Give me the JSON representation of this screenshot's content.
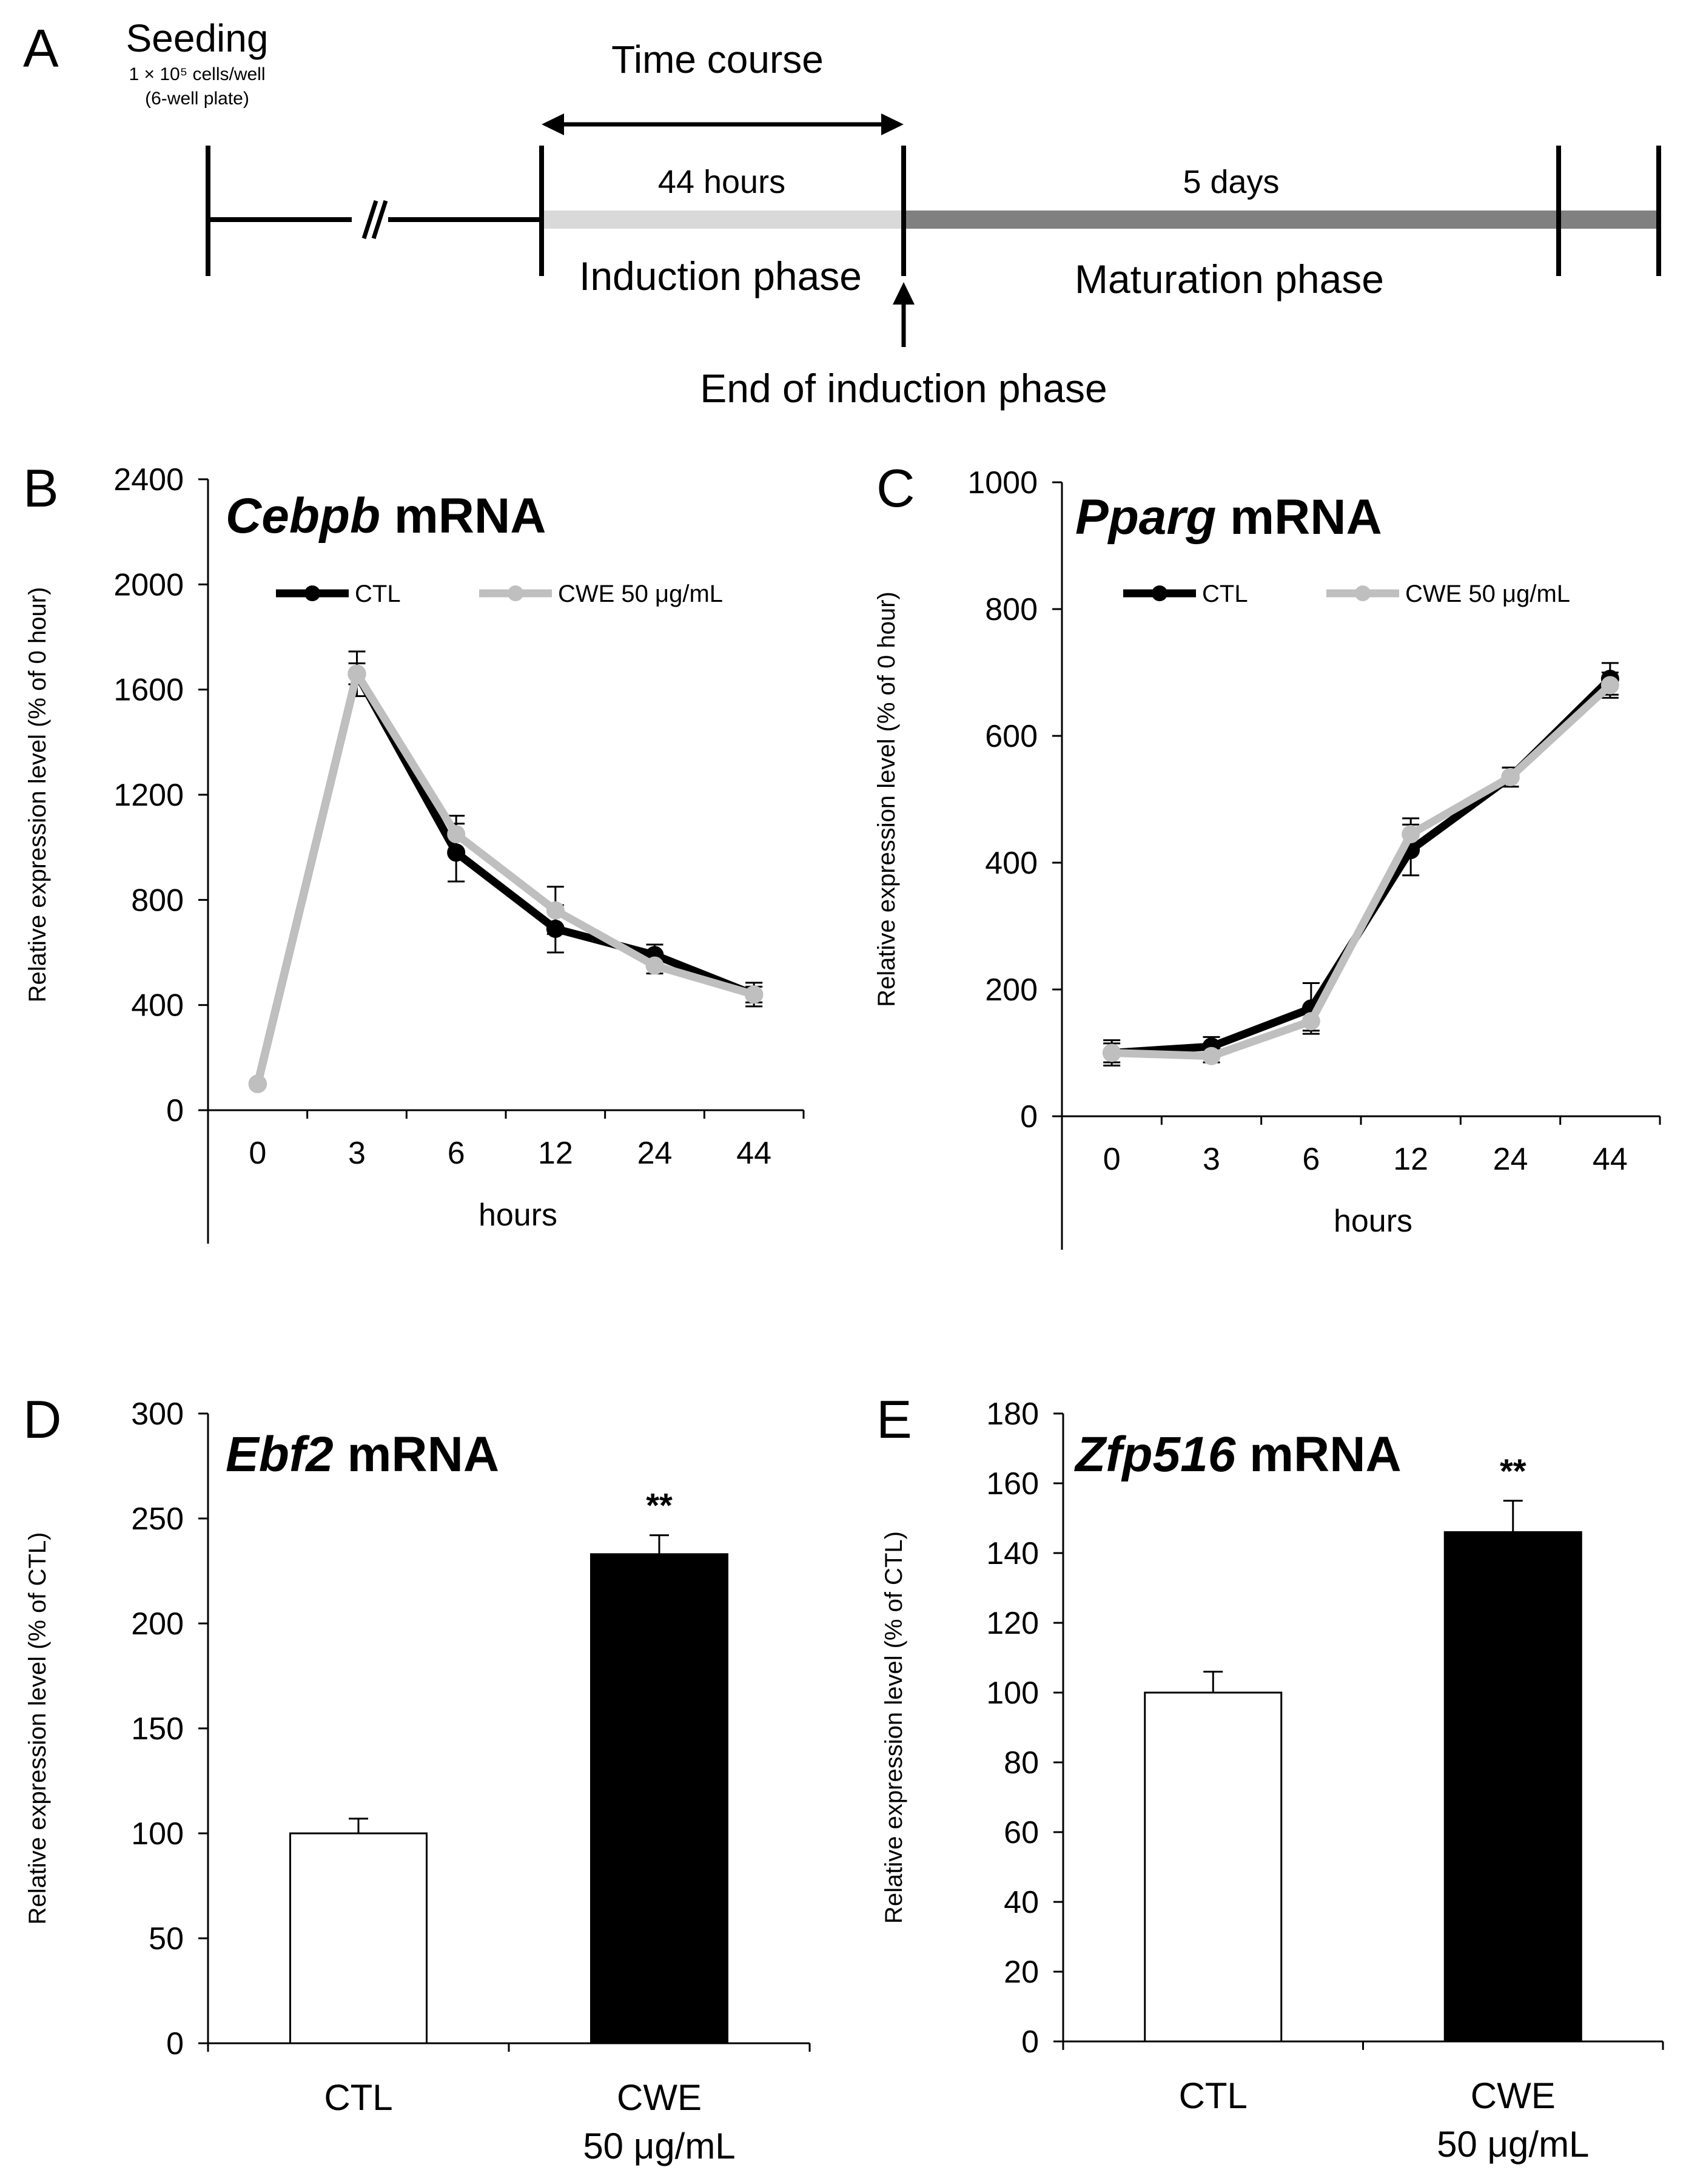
{
  "panel_a": {
    "label": "A",
    "seeding_title": "Seeding",
    "seeding_density": "1 × 10⁵ cells/well",
    "seeding_plate": "(6-well plate)",
    "time_course": "Time course",
    "induction_duration": "44 hours",
    "induction_phase": "Induction phase",
    "maturation_duration": "5 days",
    "maturation_phase": "Maturation phase",
    "end_induction": "End of induction phase",
    "colors": {
      "induction_bar": "#d9d9d9",
      "maturation_bar": "#808080"
    }
  },
  "chart_data": [
    {
      "id": "B",
      "panel_label": "B",
      "type": "line",
      "title_gene": "Cebpb",
      "title_suffix": " mRNA",
      "categories": [
        "0",
        "3",
        "6",
        "12",
        "24",
        "44"
      ],
      "series": [
        {
          "name": "CTL",
          "color": "#000000",
          "values": [
            100,
            1660,
            980,
            690,
            590,
            440
          ],
          "errors": [
            0,
            85,
            110,
            90,
            40,
            45
          ]
        },
        {
          "name": "CWE 50 μg/mL",
          "color": "#bfbfbf",
          "values": [
            100,
            1660,
            1050,
            760,
            550,
            440
          ],
          "errors": [
            0,
            40,
            70,
            90,
            30,
            30
          ]
        }
      ],
      "ylim": [
        0,
        2400
      ],
      "yticks": [
        0,
        400,
        800,
        1200,
        1600,
        2000,
        2400
      ],
      "xlabel": "hours",
      "ylabel": "Relative expression level (% of 0 hour)",
      "legend_position": "top"
    },
    {
      "id": "C",
      "panel_label": "C",
      "type": "line",
      "title_gene": "Pparg",
      "title_suffix": " mRNA",
      "categories": [
        "0",
        "3",
        "6",
        "12",
        "24",
        "44"
      ],
      "series": [
        {
          "name": "CTL",
          "color": "#000000",
          "values": [
            100,
            110,
            170,
            420,
            535,
            690
          ],
          "errors": [
            20,
            15,
            40,
            40,
            15,
            25
          ]
        },
        {
          "name": "CWE 50 μg/mL",
          "color": "#bfbfbf",
          "values": [
            100,
            95,
            150,
            445,
            535,
            680
          ],
          "errors": [
            15,
            10,
            15,
            25,
            15,
            20
          ]
        }
      ],
      "ylim": [
        0,
        1000
      ],
      "yticks": [
        0,
        200,
        400,
        600,
        800,
        1000
      ],
      "xlabel": "hours",
      "ylabel": "Relative expression level (% of 0 hour)",
      "legend_position": "top"
    },
    {
      "id": "D",
      "panel_label": "D",
      "type": "bar",
      "title_gene": "Ebf2",
      "title_suffix": " mRNA",
      "categories": [
        {
          "line1": "CTL",
          "line2": ""
        },
        {
          "line1": "CWE",
          "line2": "50 μg/mL"
        }
      ],
      "values": [
        100,
        233
      ],
      "errors": [
        7,
        9
      ],
      "fills": [
        "#ffffff",
        "#000000"
      ],
      "significance": [
        "",
        "**"
      ],
      "ylim": [
        0,
        300
      ],
      "yticks": [
        0,
        50,
        100,
        150,
        200,
        250,
        300
      ],
      "ylabel": "Relative expression level (% of CTL)"
    },
    {
      "id": "E",
      "panel_label": "E",
      "type": "bar",
      "title_gene": "Zfp516",
      "title_suffix": " mRNA",
      "categories": [
        {
          "line1": "CTL",
          "line2": ""
        },
        {
          "line1": "CWE",
          "line2": "50 μg/mL"
        }
      ],
      "values": [
        100,
        146
      ],
      "errors": [
        6,
        9
      ],
      "fills": [
        "#ffffff",
        "#000000"
      ],
      "significance": [
        "",
        "**"
      ],
      "ylim": [
        0,
        180
      ],
      "yticks": [
        0,
        20,
        40,
        60,
        80,
        100,
        120,
        140,
        160,
        180
      ],
      "ylabel": "Relative expression level (% of CTL)"
    }
  ]
}
